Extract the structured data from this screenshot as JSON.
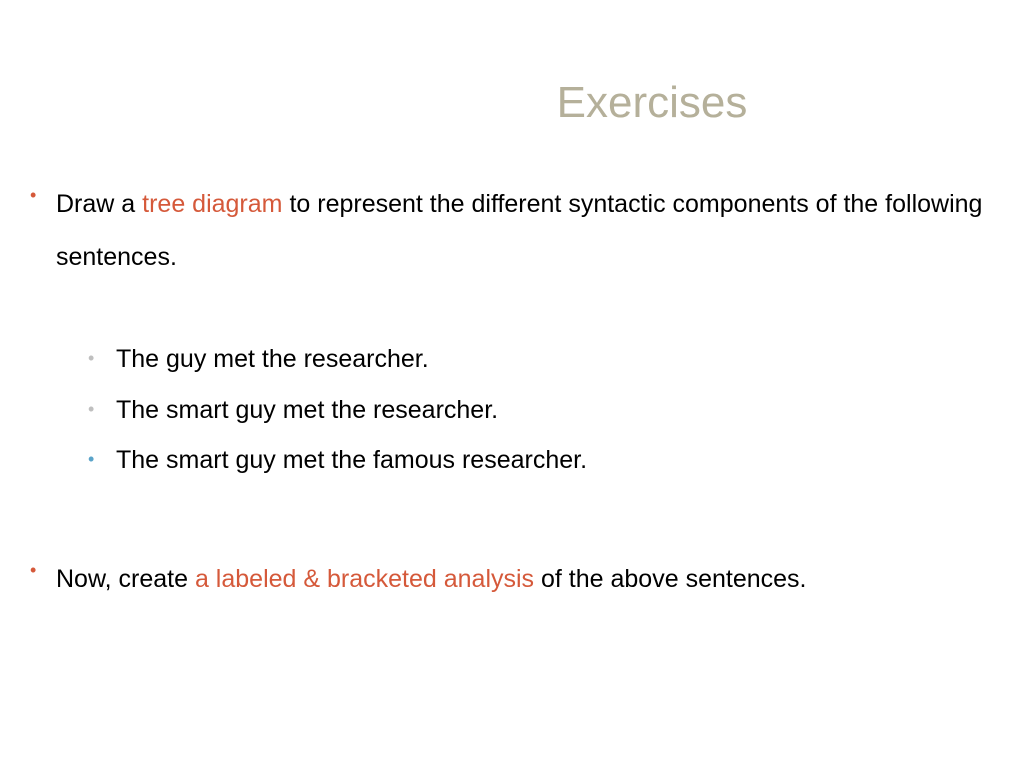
{
  "title": {
    "text": "Exercises",
    "color": "#b5b09a",
    "fontsize": 44
  },
  "colors": {
    "bullet_main": "#d5593a",
    "bullet_sub_1": "#bfbfbf",
    "bullet_sub_2": "#bfbfbf",
    "bullet_sub_3": "#5aa3c9",
    "bullet_last": "#d5593a",
    "text": "#000000",
    "highlight": "#d5593a",
    "highlight2": "#d5593a"
  },
  "main_bullet_1": {
    "pre": "Draw a ",
    "highlight": "tree diagram",
    "post": " to represent the different syntactic components of the following sentences."
  },
  "sub_items": [
    "The guy met the researcher.",
    "The smart guy met the researcher.",
    "The smart guy met the famous researcher."
  ],
  "main_bullet_2": {
    "pre": "Now, create ",
    "highlight": "a labeled & bracketed analysis",
    "post": " of the above sentences."
  }
}
